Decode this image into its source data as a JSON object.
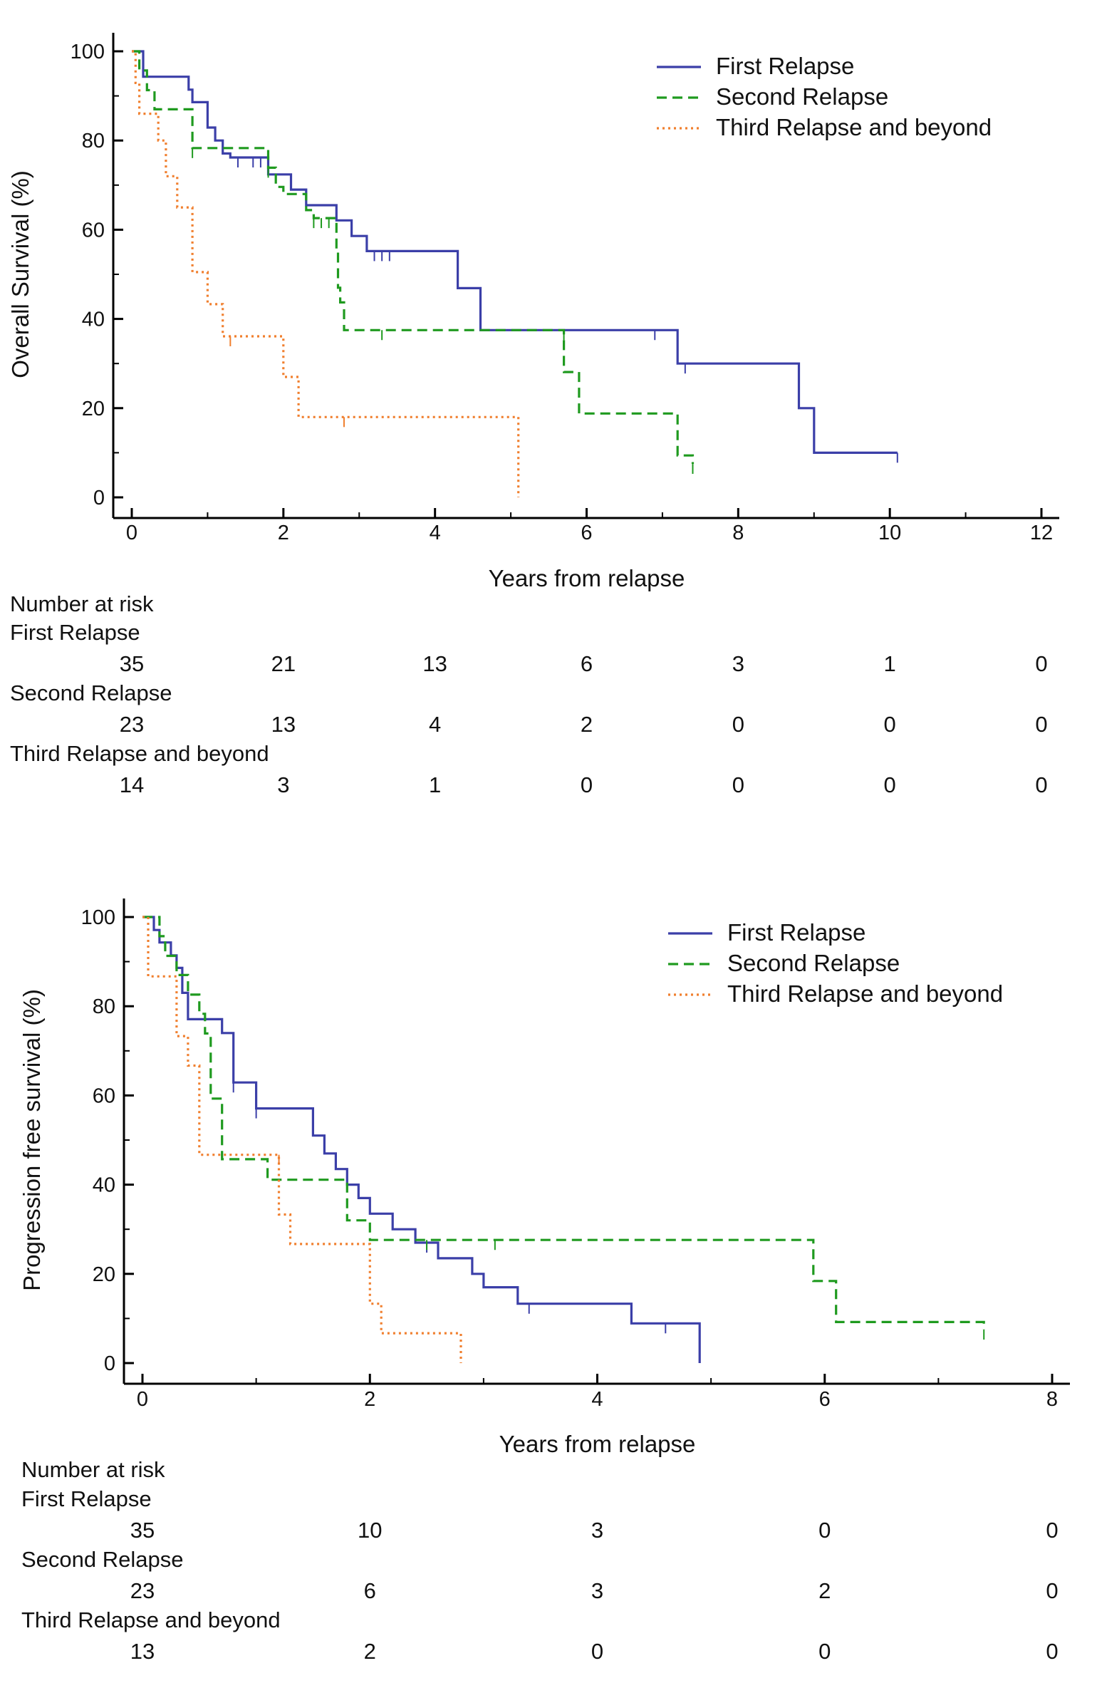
{
  "colors": {
    "first_relapse": "#3b3fa8",
    "second_relapse": "#1f9a1f",
    "third_relapse": "#f07f2e"
  },
  "chart_data": [
    {
      "type": "line",
      "step": true,
      "ylabel": "Overall Survival (%)",
      "xlabel": "Years from relapse",
      "xlim": [
        0,
        12
      ],
      "ylim": [
        0,
        100
      ],
      "xticks": [
        0,
        2,
        4,
        6,
        8,
        10,
        12
      ],
      "yticks": [
        0,
        20,
        40,
        60,
        80,
        100
      ],
      "legend_position": "top-right",
      "series": [
        {
          "name": "First Relapse",
          "style": "solid",
          "color": "#3b3fa8",
          "points": [
            [
              0,
              100
            ],
            [
              0.15,
              100
            ],
            [
              0.15,
              94.3
            ],
            [
              0.75,
              94.3
            ],
            [
              0.75,
              91.4
            ],
            [
              0.8,
              91.4
            ],
            [
              0.8,
              88.6
            ],
            [
              1.0,
              88.6
            ],
            [
              1.0,
              82.9
            ],
            [
              1.1,
              82.9
            ],
            [
              1.1,
              80
            ],
            [
              1.2,
              80
            ],
            [
              1.2,
              77.1
            ],
            [
              1.3,
              77.1
            ],
            [
              1.3,
              76.2
            ],
            [
              1.8,
              76.2
            ],
            [
              1.8,
              72.4
            ],
            [
              2.1,
              72.4
            ],
            [
              2.1,
              69
            ],
            [
              2.3,
              69
            ],
            [
              2.3,
              65.5
            ],
            [
              2.7,
              65.5
            ],
            [
              2.7,
              62.1
            ],
            [
              2.9,
              62.1
            ],
            [
              2.9,
              58.6
            ],
            [
              3.1,
              58.6
            ],
            [
              3.1,
              55.2
            ],
            [
              4.3,
              55.2
            ],
            [
              4.3,
              46.9
            ],
            [
              4.6,
              46.9
            ],
            [
              4.6,
              37.5
            ],
            [
              7.2,
              37.5
            ],
            [
              7.2,
              30
            ],
            [
              8.8,
              30
            ],
            [
              8.8,
              20
            ],
            [
              9.0,
              20
            ],
            [
              9.0,
              10
            ],
            [
              10.1,
              10
            ]
          ],
          "censored": [
            [
              1.4,
              76.2
            ],
            [
              1.6,
              76.2
            ],
            [
              1.7,
              76.2
            ],
            [
              3.2,
              55.2
            ],
            [
              3.3,
              55.2
            ],
            [
              3.4,
              55.2
            ],
            [
              6.9,
              37.5
            ],
            [
              7.3,
              30
            ],
            [
              10.1,
              10
            ]
          ]
        },
        {
          "name": "Second Relapse",
          "style": "dashed",
          "color": "#1f9a1f",
          "points": [
            [
              0,
              100
            ],
            [
              0.1,
              100
            ],
            [
              0.1,
              95.7
            ],
            [
              0.2,
              95.7
            ],
            [
              0.2,
              91.3
            ],
            [
              0.3,
              91.3
            ],
            [
              0.3,
              87
            ],
            [
              0.8,
              87
            ],
            [
              0.8,
              78.3
            ],
            [
              1.8,
              78.3
            ],
            [
              1.8,
              73.9
            ],
            [
              1.9,
              73.9
            ],
            [
              1.9,
              69.6
            ],
            [
              2.0,
              69.6
            ],
            [
              2.0,
              68
            ],
            [
              2.3,
              68
            ],
            [
              2.3,
              64.4
            ],
            [
              2.4,
              64.4
            ],
            [
              2.4,
              62.6
            ],
            [
              2.7,
              62.6
            ],
            [
              2.7,
              55
            ],
            [
              2.72,
              55
            ],
            [
              2.72,
              47
            ],
            [
              2.75,
              47
            ],
            [
              2.75,
              43.7
            ],
            [
              2.8,
              43.7
            ],
            [
              2.8,
              37.5
            ],
            [
              5.7,
              37.5
            ],
            [
              5.7,
              28.1
            ],
            [
              5.9,
              28.1
            ],
            [
              5.9,
              18.8
            ],
            [
              7.2,
              18.8
            ],
            [
              7.2,
              9.4
            ],
            [
              7.4,
              9.4
            ],
            [
              7.4,
              7.5
            ]
          ],
          "censored": [
            [
              0.8,
              78.3
            ],
            [
              1.8,
              73.9
            ],
            [
              2.4,
              62.6
            ],
            [
              2.5,
              62.6
            ],
            [
              2.6,
              62.6
            ],
            [
              3.3,
              37.5
            ],
            [
              5.7,
              37.5
            ],
            [
              7.4,
              7.5
            ]
          ]
        },
        {
          "name": "Third Relapse and beyond",
          "style": "dotted",
          "color": "#f07f2e",
          "points": [
            [
              0,
              100
            ],
            [
              0.05,
              100
            ],
            [
              0.05,
              92.9
            ],
            [
              0.1,
              92.9
            ],
            [
              0.1,
              86
            ],
            [
              0.35,
              86
            ],
            [
              0.35,
              80
            ],
            [
              0.45,
              80
            ],
            [
              0.45,
              72
            ],
            [
              0.6,
              72
            ],
            [
              0.6,
              65
            ],
            [
              0.8,
              65
            ],
            [
              0.8,
              50.5
            ],
            [
              1.0,
              50.5
            ],
            [
              1.0,
              43.3
            ],
            [
              1.2,
              43.3
            ],
            [
              1.2,
              36.1
            ],
            [
              2.0,
              36.1
            ],
            [
              2.0,
              27
            ],
            [
              2.2,
              27
            ],
            [
              2.2,
              18
            ],
            [
              5.1,
              18
            ],
            [
              5.1,
              0
            ]
          ],
          "censored": [
            [
              1.3,
              36.1
            ],
            [
              2.8,
              18
            ]
          ]
        }
      ],
      "risk_table": {
        "title": "Number at risk",
        "times": [
          0,
          2,
          4,
          6,
          8,
          10,
          12
        ],
        "rows": [
          {
            "label": "First Relapse",
            "values": [
              "35",
              "21",
              "13",
              "6",
              "3",
              "1",
              "0"
            ]
          },
          {
            "label": "Second Relapse",
            "values": [
              "23",
              "13",
              "4",
              "2",
              "0",
              "0",
              "0"
            ]
          },
          {
            "label": "Third Relapse and beyond",
            "values": [
              "14",
              "3",
              "1",
              "0",
              "0",
              "0",
              "0"
            ]
          }
        ]
      }
    },
    {
      "type": "line",
      "step": true,
      "ylabel": "Progression free survival (%)",
      "xlabel": "Years from relapse",
      "xlim": [
        0,
        8
      ],
      "ylim": [
        0,
        100
      ],
      "xticks": [
        0,
        2,
        4,
        6,
        8
      ],
      "yticks": [
        0,
        20,
        40,
        60,
        80,
        100
      ],
      "legend_position": "top-right",
      "series": [
        {
          "name": "First Relapse",
          "style": "solid",
          "color": "#3b3fa8",
          "points": [
            [
              0,
              100
            ],
            [
              0.1,
              100
            ],
            [
              0.1,
              97.1
            ],
            [
              0.15,
              97.1
            ],
            [
              0.15,
              94.3
            ],
            [
              0.25,
              94.3
            ],
            [
              0.25,
              91.4
            ],
            [
              0.3,
              91.4
            ],
            [
              0.3,
              88.6
            ],
            [
              0.35,
              88.6
            ],
            [
              0.35,
              83
            ],
            [
              0.4,
              83
            ],
            [
              0.4,
              77.1
            ],
            [
              0.7,
              77.1
            ],
            [
              0.7,
              74
            ],
            [
              0.8,
              74
            ],
            [
              0.8,
              62.9
            ],
            [
              1.0,
              62.9
            ],
            [
              1.0,
              57.1
            ],
            [
              1.5,
              57.1
            ],
            [
              1.5,
              51
            ],
            [
              1.6,
              51
            ],
            [
              1.6,
              47
            ],
            [
              1.7,
              47
            ],
            [
              1.7,
              43.5
            ],
            [
              1.8,
              43.5
            ],
            [
              1.8,
              40
            ],
            [
              1.9,
              40
            ],
            [
              1.9,
              37
            ],
            [
              2.0,
              37
            ],
            [
              2.0,
              33.5
            ],
            [
              2.2,
              33.5
            ],
            [
              2.2,
              30
            ],
            [
              2.4,
              30
            ],
            [
              2.4,
              27
            ],
            [
              2.6,
              27
            ],
            [
              2.6,
              23.5
            ],
            [
              2.9,
              23.5
            ],
            [
              2.9,
              20
            ],
            [
              3.0,
              20
            ],
            [
              3.0,
              17
            ],
            [
              3.3,
              17
            ],
            [
              3.3,
              13.3
            ],
            [
              4.3,
              13.3
            ],
            [
              4.3,
              8.9
            ],
            [
              4.9,
              8.9
            ],
            [
              4.9,
              0
            ]
          ],
          "censored": [
            [
              0.8,
              62.9
            ],
            [
              1.0,
              57.1
            ],
            [
              2.5,
              27
            ],
            [
              3.4,
              13.3
            ],
            [
              4.6,
              8.9
            ]
          ]
        },
        {
          "name": "Second Relapse",
          "style": "dashed",
          "color": "#1f9a1f",
          "points": [
            [
              0,
              100
            ],
            [
              0.15,
              100
            ],
            [
              0.15,
              95.7
            ],
            [
              0.2,
              95.7
            ],
            [
              0.2,
              91.3
            ],
            [
              0.3,
              91.3
            ],
            [
              0.3,
              87
            ],
            [
              0.4,
              87
            ],
            [
              0.4,
              82.6
            ],
            [
              0.5,
              82.6
            ],
            [
              0.5,
              78.3
            ],
            [
              0.55,
              78.3
            ],
            [
              0.55,
              73.9
            ],
            [
              0.6,
              73.9
            ],
            [
              0.6,
              59.3
            ],
            [
              0.7,
              59.3
            ],
            [
              0.7,
              45.7
            ],
            [
              1.1,
              45.7
            ],
            [
              1.1,
              41.1
            ],
            [
              1.8,
              41.1
            ],
            [
              1.8,
              32
            ],
            [
              2.0,
              32
            ],
            [
              2.0,
              27.6
            ],
            [
              5.9,
              27.6
            ],
            [
              5.9,
              18.4
            ],
            [
              6.1,
              18.4
            ],
            [
              6.1,
              9.2
            ],
            [
              7.4,
              9.2
            ],
            [
              7.4,
              7.5
            ]
          ],
          "censored": [
            [
              2.5,
              27.6
            ],
            [
              3.1,
              27.6
            ],
            [
              7.4,
              7.5
            ]
          ]
        },
        {
          "name": "Third Relapse and beyond",
          "style": "dotted",
          "color": "#f07f2e",
          "points": [
            [
              0,
              100
            ],
            [
              0.05,
              100
            ],
            [
              0.05,
              86.7
            ],
            [
              0.3,
              86.7
            ],
            [
              0.3,
              73.3
            ],
            [
              0.4,
              73.3
            ],
            [
              0.4,
              66.7
            ],
            [
              0.5,
              66.7
            ],
            [
              0.5,
              46.7
            ],
            [
              1.2,
              46.7
            ],
            [
              1.2,
              33.3
            ],
            [
              1.3,
              33.3
            ],
            [
              1.3,
              26.7
            ],
            [
              2.0,
              26.7
            ],
            [
              2.0,
              13.3
            ],
            [
              2.1,
              13.3
            ],
            [
              2.1,
              6.7
            ],
            [
              2.8,
              6.7
            ],
            [
              2.8,
              0
            ]
          ],
          "censored": [
            [
              1.2,
              46.7
            ]
          ]
        }
      ],
      "risk_table": {
        "title": "Number at risk",
        "times": [
          0,
          2,
          4,
          6,
          8
        ],
        "rows": [
          {
            "label": "First Relapse",
            "values": [
              "35",
              "10",
              "3",
              "0",
              "0"
            ]
          },
          {
            "label": "Second Relapse",
            "values": [
              "23",
              "6",
              "3",
              "2",
              "0"
            ]
          },
          {
            "label": "Third Relapse and beyond",
            "values": [
              "13",
              "2",
              "0",
              "0",
              "0"
            ]
          }
        ]
      }
    }
  ]
}
